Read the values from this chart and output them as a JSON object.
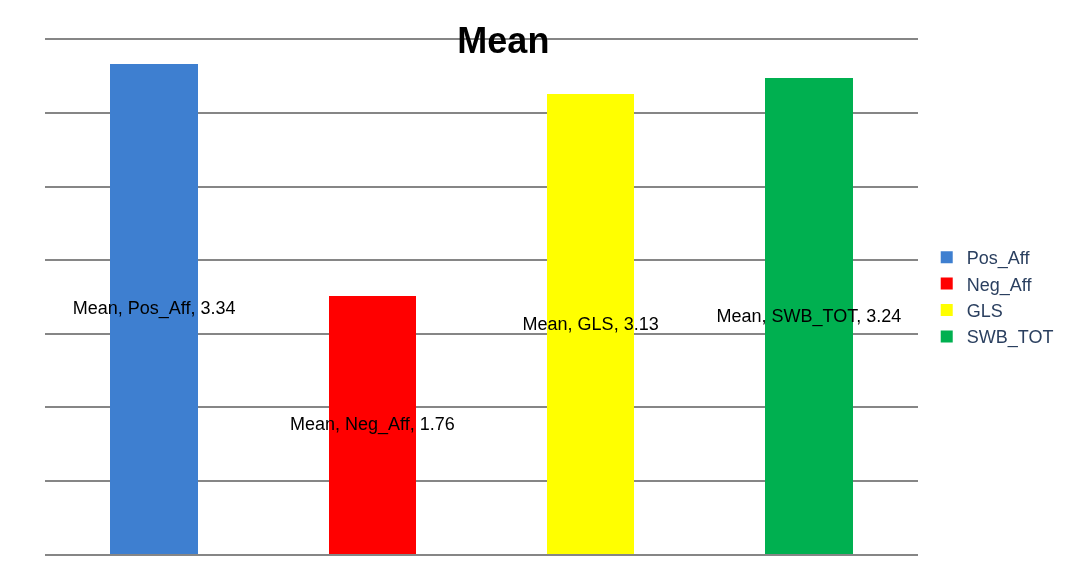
{
  "chart_data": {
    "type": "bar",
    "title": "Mean",
    "stacked": true,
    "categories": [
      null,
      null,
      null,
      null
    ],
    "series": [
      {
        "name": "Pos_Aff",
        "color": "#3e7fd0",
        "values": [
          3.34,
          null,
          null,
          null
        ],
        "value_labels": [
          "Mean, Pos_Aff, 3.34",
          null,
          null,
          null
        ]
      },
      {
        "name": "Neg_Aff",
        "color": "#ff0000",
        "values": [
          null,
          1.76,
          null,
          null
        ],
        "value_labels": [
          null,
          "Mean, Neg_Aff, 1.76",
          null,
          null
        ]
      },
      {
        "name": "GLS",
        "color": "#ffff00",
        "values": [
          null,
          null,
          3.13,
          null
        ],
        "value_labels": [
          null,
          null,
          "Mean, GLS, 3.13",
          null
        ]
      },
      {
        "name": "SWB_TOT",
        "color": "#00b050",
        "values": [
          null,
          null,
          null,
          3.24
        ],
        "value_labels": [
          null,
          null,
          null,
          "Mean, SWB_TOT, 3.24"
        ]
      }
    ],
    "ylim": [
      0,
      3.5
    ],
    "yticks": [
      {
        "value": 0,
        "label": null
      },
      {
        "value": 0.5,
        "label": null
      },
      {
        "value": 1,
        "label": null
      },
      {
        "value": 1.5,
        "label": null
      },
      {
        "value": 2,
        "label": null
      },
      {
        "value": 2.5,
        "label": null
      },
      {
        "value": 3,
        "label": null
      },
      {
        "value": 3.5,
        "label": null
      }
    ],
    "grid": "y",
    "legend": "right"
  }
}
